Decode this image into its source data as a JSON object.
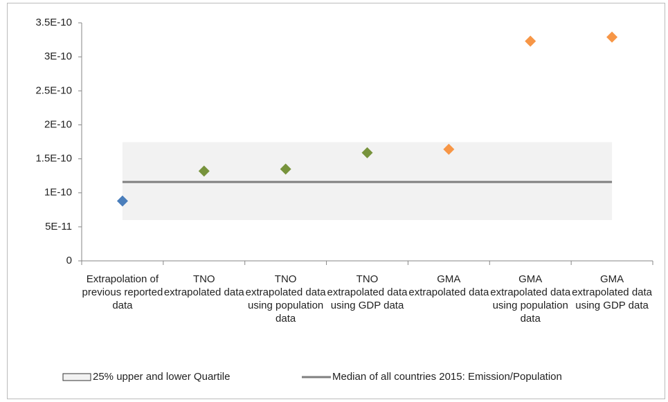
{
  "chart_data": {
    "type": "scatter",
    "categories": [
      "Extrapolation of previous reported data",
      "TNO extrapolated data",
      "TNO extrapolated data using population data",
      "TNO extrapolated data using GDP data",
      "GMA extrapolated data",
      "GMA extrapolated data using population data",
      "GMA extrapolated data using GDP data"
    ],
    "series": [
      {
        "color": "#4a7ebb",
        "values": [
          8.8e-11,
          null,
          null,
          null,
          null,
          null,
          null
        ]
      },
      {
        "color": "#77933c",
        "values": [
          null,
          1.32e-10,
          1.35e-10,
          1.59e-10,
          null,
          null,
          null
        ]
      },
      {
        "color": "#f79646",
        "values": [
          null,
          null,
          null,
          null,
          1.64e-10,
          3.23e-10,
          3.29e-10
        ]
      }
    ],
    "quartile_band": {
      "name": "25% upper and lower Quartile",
      "lower": 6e-11,
      "upper": 1.745e-10,
      "color": "#f2f2f2"
    },
    "median": {
      "name": "Median of all countries 2015: Emission/Population",
      "value": 1.16e-10,
      "color": "#7f7f7f"
    },
    "ylim": [
      0,
      3.5e-10
    ],
    "yticks": [
      0,
      {
        "value": 5e-11,
        "label": "5E-11"
      },
      {
        "value": 1e-10,
        "label": "1E-10"
      },
      {
        "value": 1.5e-10,
        "label": "1.5E-10"
      },
      {
        "value": 2e-10,
        "label": "2E-10"
      },
      {
        "value": 2.5e-10,
        "label": "2.5E-10"
      },
      {
        "value": 3e-10,
        "label": "3E-10"
      },
      {
        "value": 3.5e-10,
        "label": "3.5E-10"
      }
    ]
  }
}
